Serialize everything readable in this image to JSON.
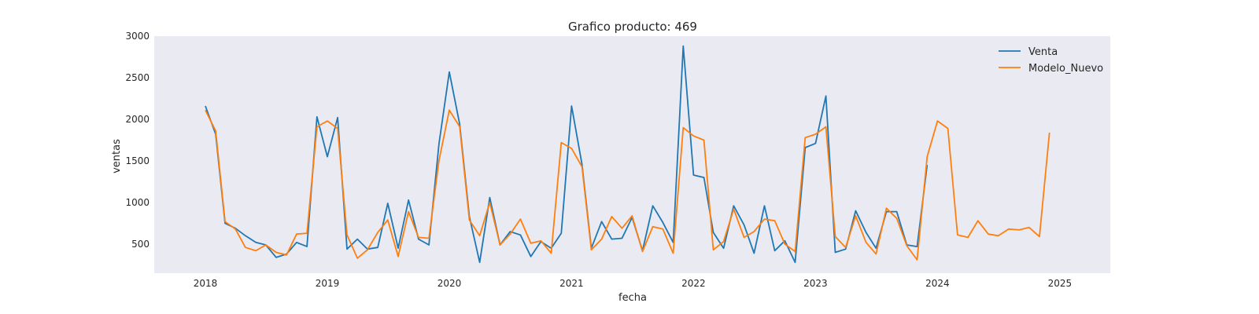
{
  "chart_data": {
    "type": "line",
    "title": "Grafico producto: 469",
    "xlabel": "fecha",
    "ylabel": "ventas",
    "xlim": [
      "2017-08-01",
      "2025-06-01"
    ],
    "ylim": [
      150,
      3000
    ],
    "yticks": [
      500,
      1000,
      1500,
      2000,
      2500,
      3000
    ],
    "xticks": [
      "2018-01-01",
      "2019-01-01",
      "2020-01-01",
      "2021-01-01",
      "2022-01-01",
      "2023-01-01",
      "2024-01-01",
      "2025-01-01"
    ],
    "xtick_labels": [
      "2018",
      "2019",
      "2020",
      "2021",
      "2022",
      "2023",
      "2024",
      "2025"
    ],
    "grid": false,
    "legend_position": "top-right",
    "background_color": "#eaeaf2",
    "series": [
      {
        "name": "Venta",
        "color": "#1f77b4",
        "x": [
          "2018-01",
          "2018-02",
          "2018-03",
          "2018-04",
          "2018-05",
          "2018-06",
          "2018-07",
          "2018-08",
          "2018-09",
          "2018-10",
          "2018-11",
          "2018-12",
          "2019-01",
          "2019-02",
          "2019-03",
          "2019-04",
          "2019-05",
          "2019-06",
          "2019-07",
          "2019-08",
          "2019-09",
          "2019-10",
          "2019-11",
          "2019-12",
          "2020-01",
          "2020-02",
          "2020-03",
          "2020-04",
          "2020-05",
          "2020-06",
          "2020-07",
          "2020-08",
          "2020-09",
          "2020-10",
          "2020-11",
          "2020-12",
          "2021-01",
          "2021-02",
          "2021-03",
          "2021-04",
          "2021-05",
          "2021-06",
          "2021-07",
          "2021-08",
          "2021-09",
          "2021-10",
          "2021-11",
          "2021-12",
          "2022-01",
          "2022-02",
          "2022-03",
          "2022-04",
          "2022-05",
          "2022-06",
          "2022-07",
          "2022-08",
          "2022-09",
          "2022-10",
          "2022-11",
          "2022-12",
          "2023-01",
          "2023-02",
          "2023-03",
          "2023-04",
          "2023-05",
          "2023-06",
          "2023-07",
          "2023-08",
          "2023-09",
          "2023-10",
          "2023-11",
          "2023-12"
        ],
        "y": [
          2160,
          1820,
          750,
          690,
          600,
          520,
          490,
          340,
          380,
          520,
          470,
          2030,
          1550,
          2020,
          440,
          560,
          440,
          460,
          990,
          450,
          1030,
          560,
          490,
          1700,
          2570,
          1940,
          830,
          280,
          1060,
          490,
          650,
          610,
          350,
          530,
          450,
          630,
          2160,
          1460,
          450,
          770,
          560,
          570,
          820,
          420,
          960,
          760,
          520,
          2880,
          1330,
          1300,
          640,
          450,
          960,
          730,
          390,
          960,
          420,
          540,
          280,
          1660,
          1710,
          2280,
          400,
          440,
          900,
          640,
          450,
          890,
          890,
          490,
          470,
          1450
        ]
      },
      {
        "name": "Modelo_Nuevo",
        "color": "#ff7f0e",
        "x": [
          "2018-01",
          "2018-02",
          "2018-03",
          "2018-04",
          "2018-05",
          "2018-06",
          "2018-07",
          "2018-08",
          "2018-09",
          "2018-10",
          "2018-11",
          "2018-12",
          "2019-01",
          "2019-02",
          "2019-03",
          "2019-04",
          "2019-05",
          "2019-06",
          "2019-07",
          "2019-08",
          "2019-09",
          "2019-10",
          "2019-11",
          "2019-12",
          "2020-01",
          "2020-02",
          "2020-03",
          "2020-04",
          "2020-05",
          "2020-06",
          "2020-07",
          "2020-08",
          "2020-09",
          "2020-10",
          "2020-11",
          "2020-12",
          "2021-01",
          "2021-02",
          "2021-03",
          "2021-04",
          "2021-05",
          "2021-06",
          "2021-07",
          "2021-08",
          "2021-09",
          "2021-10",
          "2021-11",
          "2021-12",
          "2022-01",
          "2022-02",
          "2022-03",
          "2022-04",
          "2022-05",
          "2022-06",
          "2022-07",
          "2022-08",
          "2022-09",
          "2022-10",
          "2022-11",
          "2022-12",
          "2023-01",
          "2023-02",
          "2023-03",
          "2023-04",
          "2023-05",
          "2023-06",
          "2023-07",
          "2023-08",
          "2023-09",
          "2023-10",
          "2023-11",
          "2023-12",
          "2024-01",
          "2024-02",
          "2024-03",
          "2024-04",
          "2024-05",
          "2024-06",
          "2024-07",
          "2024-08",
          "2024-09",
          "2024-10",
          "2024-11",
          "2024-12"
        ],
        "y": [
          2110,
          1860,
          770,
          680,
          460,
          420,
          490,
          400,
          370,
          620,
          630,
          1910,
          1980,
          1890,
          610,
          330,
          430,
          640,
          790,
          350,
          890,
          580,
          570,
          1500,
          2110,
          1910,
          790,
          600,
          1000,
          490,
          620,
          800,
          510,
          540,
          390,
          1720,
          1650,
          1430,
          430,
          560,
          830,
          690,
          840,
          410,
          710,
          680,
          390,
          1900,
          1800,
          1750,
          430,
          530,
          920,
          580,
          650,
          800,
          780,
          500,
          410,
          1780,
          1820,
          1910,
          590,
          460,
          840,
          520,
          380,
          930,
          810,
          480,
          310,
          1550,
          1980,
          1890,
          610,
          580,
          780,
          620,
          600,
          680,
          670,
          700,
          590,
          1840
        ]
      }
    ]
  }
}
